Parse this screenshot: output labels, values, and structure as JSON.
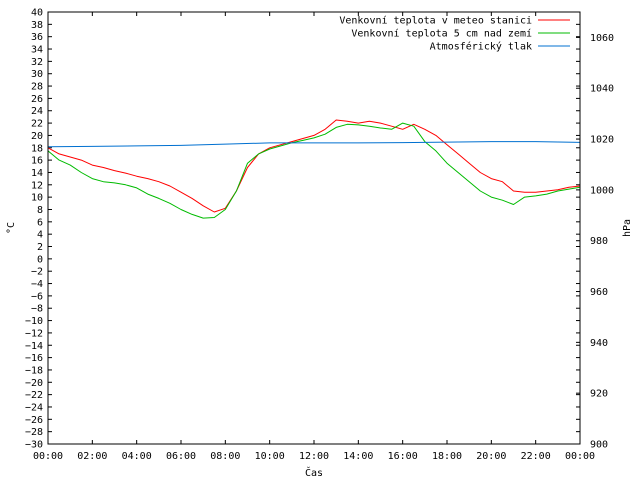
{
  "chart_data": {
    "type": "line",
    "xlabel": "Čas",
    "ylabel": "°C",
    "y2label": "hPa",
    "x_ticks": [
      "00:00",
      "02:00",
      "04:00",
      "06:00",
      "08:00",
      "10:00",
      "12:00",
      "14:00",
      "16:00",
      "18:00",
      "20:00",
      "22:00",
      "00:00"
    ],
    "xlim": [
      0,
      24
    ],
    "ylim": [
      -30,
      40
    ],
    "y_ticks": [
      -30,
      -28,
      -26,
      -24,
      -22,
      -20,
      -18,
      -16,
      -14,
      -12,
      -10,
      -8,
      -6,
      -4,
      -2,
      0,
      2,
      4,
      6,
      8,
      10,
      12,
      14,
      16,
      18,
      20,
      22,
      24,
      26,
      28,
      30,
      32,
      34,
      36,
      38,
      40
    ],
    "y2lim": [
      900,
      1070
    ],
    "y2_ticks": [
      900,
      920,
      940,
      960,
      980,
      1000,
      1020,
      1040,
      1060
    ],
    "legend_position": "top-right",
    "grid": false,
    "series": [
      {
        "name": "Venkovní teplota v meteo stanici",
        "axis": "left",
        "color": "#ff0000",
        "x": [
          0,
          0.5,
          1,
          1.5,
          2,
          2.5,
          3,
          3.5,
          4,
          4.5,
          5,
          5.5,
          6,
          6.5,
          7,
          7.5,
          8,
          8.5,
          9,
          9.5,
          10,
          10.5,
          11,
          11.5,
          12,
          12.5,
          13,
          13.5,
          14,
          14.5,
          15,
          15.5,
          16,
          16.5,
          17,
          17.5,
          18,
          18.5,
          19,
          19.5,
          20,
          20.5,
          21,
          21.5,
          22,
          22.5,
          23,
          23.5,
          24
        ],
        "values": [
          18,
          17,
          16.5,
          16,
          15.2,
          14.8,
          14.3,
          13.9,
          13.4,
          13,
          12.5,
          11.8,
          10.8,
          9.8,
          8.6,
          7.6,
          8.2,
          11,
          14.8,
          17,
          18,
          18.5,
          19,
          19.5,
          20,
          21,
          22.5,
          22.3,
          22,
          22.3,
          22,
          21.5,
          21,
          21.8,
          21,
          20,
          18.5,
          17,
          15.5,
          14,
          13,
          12.5,
          11,
          10.8,
          10.8,
          11,
          11.2,
          11.6,
          11.8
        ]
      },
      {
        "name": "Venkovní teplota 5 cm nad zemí",
        "axis": "left",
        "color": "#00bb00",
        "x": [
          0,
          0.5,
          1,
          1.5,
          2,
          2.5,
          3,
          3.5,
          4,
          4.5,
          5,
          5.5,
          6,
          6.5,
          7,
          7.5,
          8,
          8.5,
          9,
          9.5,
          10,
          10.5,
          11,
          11.5,
          12,
          12.5,
          13,
          13.5,
          14,
          14.5,
          15,
          15.5,
          16,
          16.5,
          17,
          17.5,
          18,
          18.5,
          19,
          19.5,
          20,
          20.5,
          21,
          21.5,
          22,
          22.5,
          23,
          23.5,
          24
        ],
        "values": [
          17.5,
          16,
          15.2,
          14,
          13,
          12.5,
          12.3,
          12,
          11.5,
          10.5,
          9.8,
          9,
          8,
          7.2,
          6.6,
          6.7,
          8,
          11,
          15.5,
          17,
          17.8,
          18.3,
          18.8,
          19.2,
          19.6,
          20.2,
          21.3,
          21.8,
          21.7,
          21.5,
          21.2,
          21,
          22,
          21.5,
          19,
          17.5,
          15.5,
          14,
          12.5,
          11,
          10,
          9.5,
          8.8,
          10,
          10.2,
          10.5,
          11,
          11.3,
          11.6
        ]
      },
      {
        "name": "Atmosférický tlak",
        "axis": "right",
        "color": "#0070d0",
        "x": [
          0,
          2,
          4,
          6,
          8,
          10,
          12,
          14,
          16,
          18,
          20,
          22,
          24
        ],
        "values": [
          1017,
          1017.1,
          1017.3,
          1017.5,
          1018,
          1018.5,
          1018.5,
          1018.5,
          1018.6,
          1018.8,
          1019,
          1019,
          1018.7
        ]
      }
    ]
  }
}
